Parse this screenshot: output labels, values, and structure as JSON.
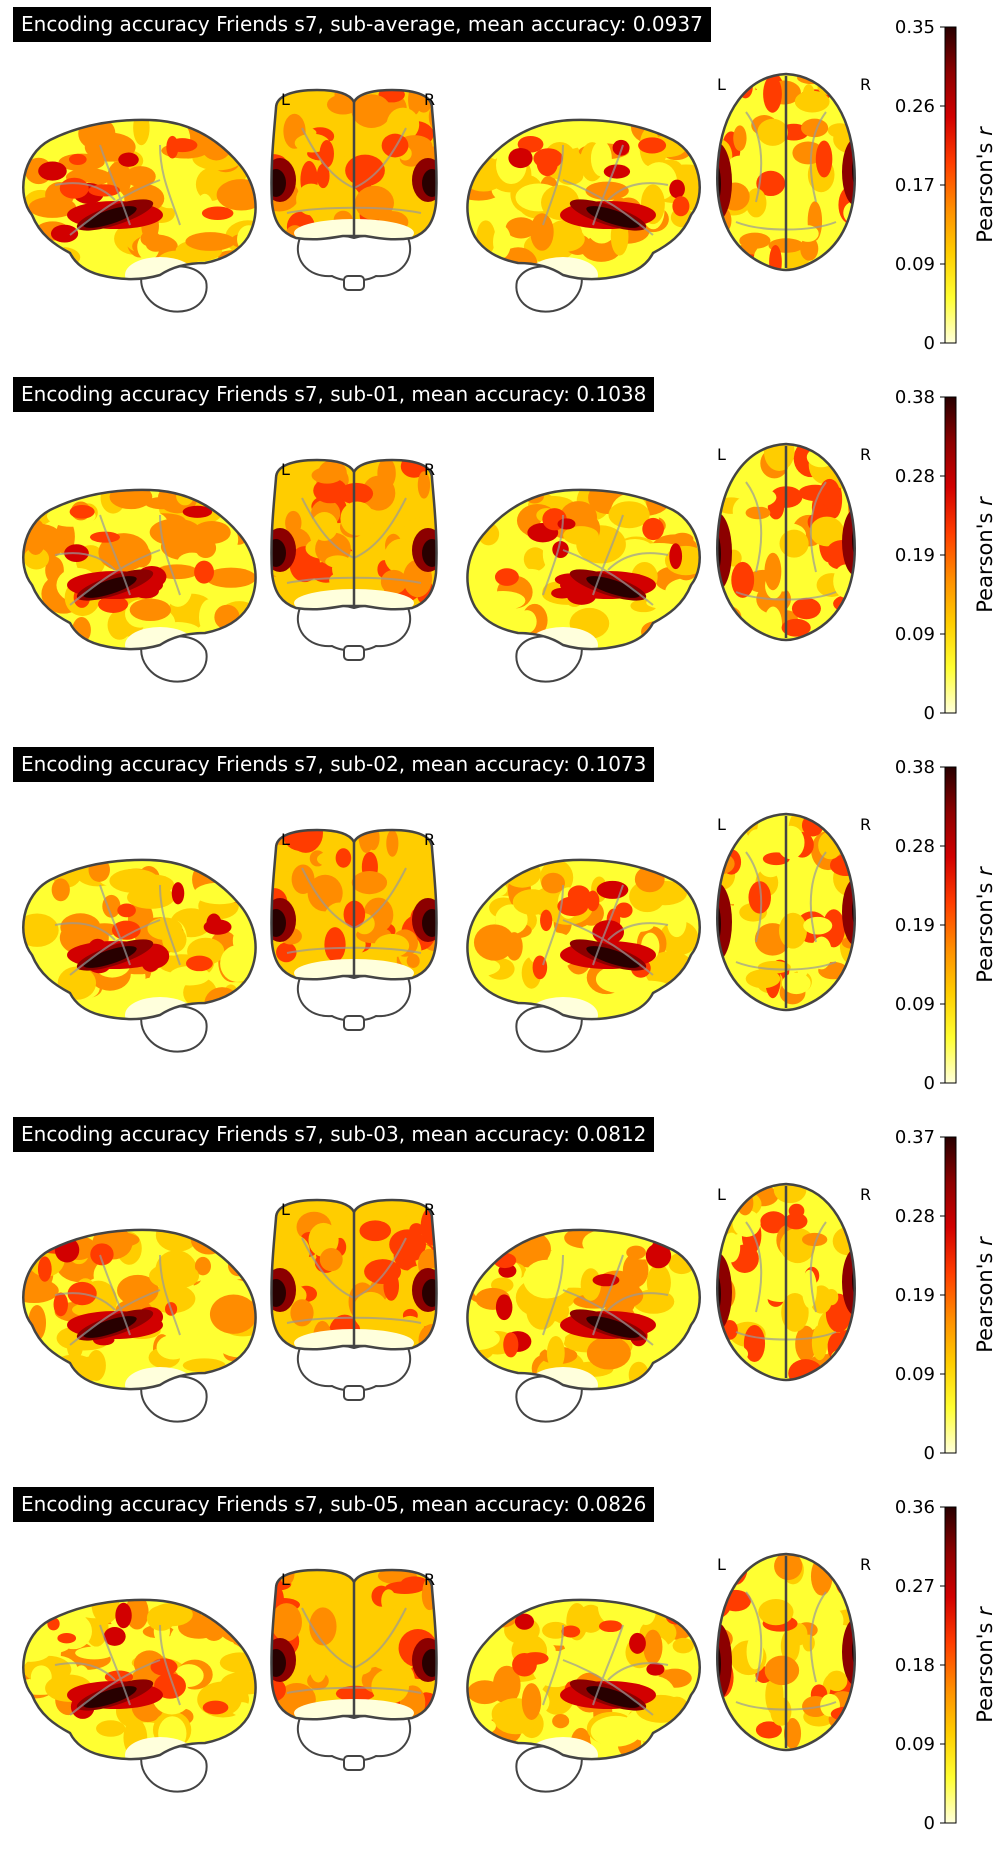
{
  "colormap": [
    "#ffffdc",
    "#ffff32",
    "#ffcd00",
    "#ff8c00",
    "#ff3c00",
    "#d20000",
    "#8c0000",
    "#280000"
  ],
  "outline_color": "#444444",
  "colorbar_label": "Pearson's ",
  "colorbar_label_italic": "r",
  "view_labels": {
    "left": "L",
    "right": "R"
  },
  "panels": [
    {
      "title": "Encoding accuracy Friends s7, sub-average, mean accuracy: 0.0937",
      "colorbar": {
        "min": 0,
        "max": 0.35,
        "ticks": [
          "0.35",
          "0.26",
          "0.17",
          "0.09",
          "0"
        ]
      }
    },
    {
      "title": "Encoding accuracy Friends s7, sub-01, mean accuracy: 0.1038",
      "colorbar": {
        "min": 0,
        "max": 0.38,
        "ticks": [
          "0.38",
          "0.28",
          "0.19",
          "0.09",
          "0"
        ]
      }
    },
    {
      "title": "Encoding accuracy Friends s7, sub-02, mean accuracy: 0.1073",
      "colorbar": {
        "min": 0,
        "max": 0.38,
        "ticks": [
          "0.38",
          "0.28",
          "0.19",
          "0.09",
          "0"
        ]
      }
    },
    {
      "title": "Encoding accuracy Friends s7, sub-03, mean accuracy: 0.0812",
      "colorbar": {
        "min": 0,
        "max": 0.37,
        "ticks": [
          "0.37",
          "0.28",
          "0.19",
          "0.09",
          "0"
        ]
      }
    },
    {
      "title": "Encoding accuracy Friends s7, sub-05, mean accuracy: 0.0826",
      "colorbar": {
        "min": 0,
        "max": 0.36,
        "ticks": [
          "0.36",
          "0.27",
          "0.18",
          "0.09",
          "0"
        ]
      }
    }
  ]
}
